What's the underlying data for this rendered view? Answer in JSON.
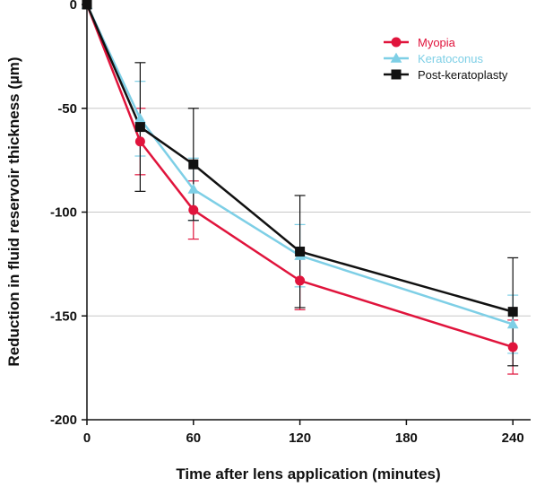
{
  "chart_data": {
    "type": "line",
    "title": "",
    "xlabel": "Time after lens application (minutes)",
    "ylabel": "Reduction in fluid reservoir thickness (µm)",
    "xlim": [
      0,
      250
    ],
    "ylim": [
      -200,
      0
    ],
    "xticks": [
      0,
      60,
      120,
      180,
      240
    ],
    "yticks": [
      0,
      -50,
      -100,
      -150,
      -200
    ],
    "x_tick_labels": [
      "0",
      "60",
      "120",
      "180",
      "240"
    ],
    "y_tick_labels": [
      "0",
      "-50",
      "-100",
      "-150",
      "-200"
    ],
    "grid": "horizontal",
    "legend_position": "top-right",
    "series": [
      {
        "name": "Myopia",
        "color": "#e0143c",
        "marker": "circle",
        "x": [
          0,
          30,
          60,
          120,
          240
        ],
        "y": [
          0,
          -66,
          -99,
          -133,
          -165
        ],
        "err": [
          0,
          16,
          14,
          14,
          13
        ]
      },
      {
        "name": "Keratoconus",
        "color": "#7ecfe6",
        "marker": "triangle",
        "x": [
          0,
          30,
          60,
          120,
          240
        ],
        "y": [
          0,
          -55,
          -89,
          -121,
          -154
        ],
        "err": [
          0,
          18,
          15,
          15,
          14
        ]
      },
      {
        "name": "Post-keratoplasty",
        "color": "#111111",
        "marker": "square",
        "x": [
          0,
          30,
          60,
          120,
          240
        ],
        "y": [
          0,
          -59,
          -77,
          -119,
          -148
        ],
        "err": [
          0,
          31,
          27,
          27,
          26
        ]
      }
    ]
  }
}
